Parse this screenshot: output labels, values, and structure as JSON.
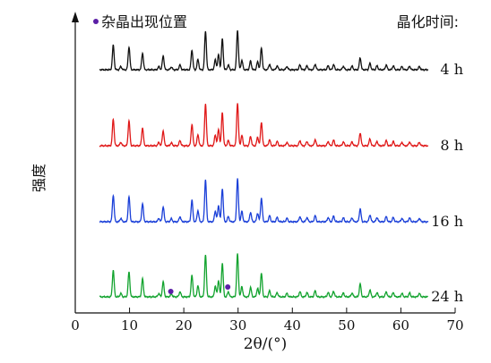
{
  "chart_data": {
    "type": "line",
    "xlabel": "2θ/(°)",
    "ylabel": "强度",
    "xlim": [
      0,
      70
    ],
    "xticks": [
      "0",
      "10",
      "20",
      "30",
      "40",
      "50",
      "60",
      "70"
    ],
    "legend_title": "晶化时间:",
    "impurity_legend": "杂晶出现位置",
    "impurity_marker_color": "#5b1ea6",
    "impurity_positions": [
      17.6,
      28.1
    ],
    "x_range_data": [
      4.5,
      65
    ],
    "peaks": [
      {
        "x": 7.0,
        "h": 0.62
      },
      {
        "x": 8.4,
        "h": 0.08
      },
      {
        "x": 9.9,
        "h": 0.58
      },
      {
        "x": 12.4,
        "h": 0.42
      },
      {
        "x": 15.4,
        "h": 0.08
      },
      {
        "x": 16.2,
        "h": 0.35
      },
      {
        "x": 17.7,
        "h": 0.07
      },
      {
        "x": 19.3,
        "h": 0.12
      },
      {
        "x": 21.5,
        "h": 0.5
      },
      {
        "x": 22.6,
        "h": 0.26
      },
      {
        "x": 24.0,
        "h": 0.98
      },
      {
        "x": 25.8,
        "h": 0.25
      },
      {
        "x": 26.4,
        "h": 0.38
      },
      {
        "x": 27.1,
        "h": 0.78
      },
      {
        "x": 28.2,
        "h": 0.12
      },
      {
        "x": 29.9,
        "h": 1.0
      },
      {
        "x": 30.7,
        "h": 0.24
      },
      {
        "x": 32.3,
        "h": 0.22
      },
      {
        "x": 33.6,
        "h": 0.2
      },
      {
        "x": 34.3,
        "h": 0.55
      },
      {
        "x": 35.8,
        "h": 0.14
      },
      {
        "x": 37.2,
        "h": 0.1
      },
      {
        "x": 39.0,
        "h": 0.08
      },
      {
        "x": 41.4,
        "h": 0.12
      },
      {
        "x": 42.7,
        "h": 0.1
      },
      {
        "x": 44.2,
        "h": 0.14
      },
      {
        "x": 46.6,
        "h": 0.1
      },
      {
        "x": 47.6,
        "h": 0.13
      },
      {
        "x": 49.4,
        "h": 0.09
      },
      {
        "x": 51.0,
        "h": 0.09
      },
      {
        "x": 52.5,
        "h": 0.3
      },
      {
        "x": 54.3,
        "h": 0.16
      },
      {
        "x": 55.6,
        "h": 0.1
      },
      {
        "x": 57.3,
        "h": 0.12
      },
      {
        "x": 58.6,
        "h": 0.1
      },
      {
        "x": 60.2,
        "h": 0.08
      },
      {
        "x": 61.6,
        "h": 0.09
      },
      {
        "x": 63.4,
        "h": 0.08
      }
    ],
    "series": [
      {
        "name": "4 h",
        "color": "#111111",
        "scale": 0.92
      },
      {
        "name": "8 h",
        "color": "#e01818",
        "scale": 1.0
      },
      {
        "name": "16 h",
        "color": "#1a3fd8",
        "scale": 1.0
      },
      {
        "name": "24 h",
        "color": "#12a32e",
        "scale": 1.0
      }
    ]
  }
}
